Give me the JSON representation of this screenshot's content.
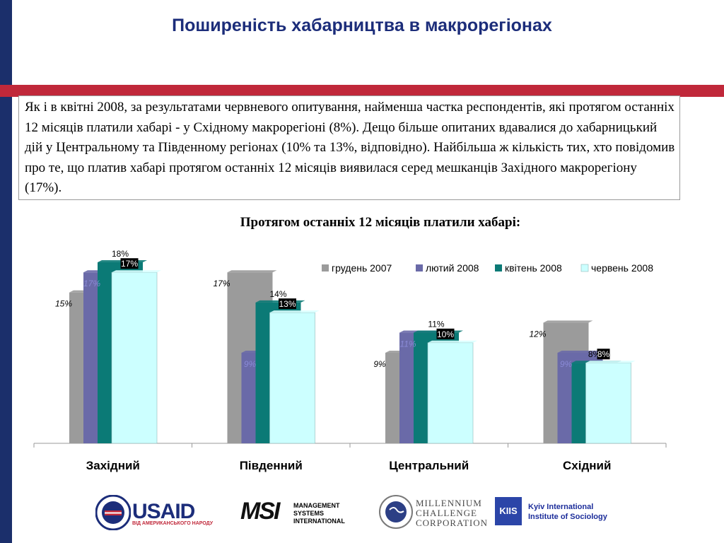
{
  "title": "Поширеність хабарництва в макрорегіонах",
  "intro_text": "Як і в квітні 2008, за результатами червневого опитування, найменша частка респондентів, які протягом останніх 12 місяців  платили хабарі - у Східному макрорегіоні (8%). Дещо більше опитаних вдавалися до хабарницький дій у Центральному та Південному регіонах (10% та 13%, відповідно). Найбільша ж кількість тих, хто повідомив про те, що платив хабарі протягом останніх 12 місяців виявилася серед мешканців Західного макрорегіону (17%).",
  "chart_data": {
    "type": "bar",
    "title": "Протягом останніх 12 місяців платили хабарі:",
    "categories": [
      "Західний",
      "Південний",
      "Центральний",
      "Східний"
    ],
    "series": [
      {
        "name": "грудень 2007",
        "values": [
          15,
          17,
          9,
          12
        ],
        "labels": [
          "15%",
          "17%",
          "9%",
          "12%"
        ],
        "color": "#9b9b9b"
      },
      {
        "name": "лютий 2008",
        "values": [
          17,
          9,
          11,
          9
        ],
        "labels": [
          "17%",
          "9%",
          "11%",
          "9%"
        ],
        "color": "#6a6aa8"
      },
      {
        "name": "квітень 2008",
        "values": [
          18,
          14,
          11,
          8
        ],
        "labels": [
          "18%",
          "14%",
          "11%",
          "8%"
        ],
        "color": "#0b7a76"
      },
      {
        "name": "червень 2008",
        "values": [
          17,
          13,
          10,
          8
        ],
        "labels": [
          "17%",
          "13%",
          "10%",
          "8%"
        ],
        "color": "#ccffff"
      }
    ],
    "ylim": [
      0,
      18
    ],
    "legend_position": "top-right",
    "grid": false
  },
  "logos": {
    "usaid_text": "USAID",
    "usaid_sub": "ВІД АМЕРИКАНСЬКОГО НАРОДУ",
    "msi_mark": "MSI",
    "msi_lines": [
      "MANAGEMENT",
      "SYSTEMS",
      "INTERNATIONAL"
    ],
    "mcc_lines": [
      "MILLENNIUM",
      "CHALLENGE",
      "CORPORATION"
    ],
    "kiis_mark": "KIIS",
    "kiis_lines": [
      "Kyiv International",
      "Institute of Sociology"
    ]
  }
}
